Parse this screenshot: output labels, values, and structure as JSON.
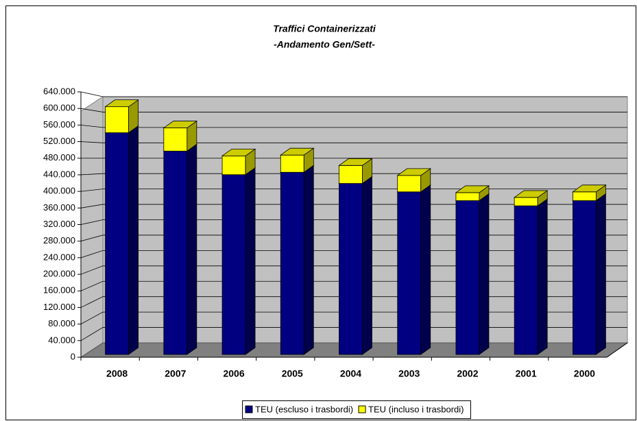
{
  "chart_data": {
    "type": "bar3d_stacked",
    "title": "Traffici Containerizzati",
    "subtitle": "-Andamento Gen/Sett-",
    "categories": [
      "2008",
      "2007",
      "2006",
      "2005",
      "2004",
      "2003",
      "2002",
      "2001",
      "2000"
    ],
    "series": [
      {
        "name": "TEU (escluso i trasbordi)",
        "color": "#000080",
        "values": [
          555000,
          509000,
          450000,
          456000,
          428000,
          407000,
          385000,
          372000,
          385000
        ]
      },
      {
        "name": "TEU (incluso i trasbordi)",
        "color": "#ffff00",
        "values": [
          65000,
          58000,
          47000,
          43000,
          45000,
          41000,
          20000,
          21000,
          22000
        ]
      }
    ],
    "ylim": [
      0,
      640000
    ],
    "yticks": [
      0,
      {
        "value": 40000,
        "label": "40.000"
      },
      {
        "value": 80000,
        "label": "80.000"
      },
      {
        "value": 120000,
        "label": "120.000"
      },
      {
        "value": 160000,
        "label": "160.000"
      },
      {
        "value": 200000,
        "label": "200.000"
      },
      {
        "value": 240000,
        "label": "240.000"
      },
      {
        "value": 280000,
        "label": "280.000"
      },
      {
        "value": 320000,
        "label": "320.000"
      },
      {
        "value": 360000,
        "label": "360.000"
      },
      {
        "value": 400000,
        "label": "400.000"
      },
      {
        "value": 440000,
        "label": "440.000"
      },
      {
        "value": 480000,
        "label": "480.000"
      },
      {
        "value": 520000,
        "label": "520.000"
      },
      {
        "value": 560000,
        "label": "560.000"
      },
      {
        "value": 600000,
        "label": "600.000"
      },
      {
        "value": 640000,
        "label": "640.000"
      }
    ],
    "grid": true,
    "legend": "bottom"
  }
}
